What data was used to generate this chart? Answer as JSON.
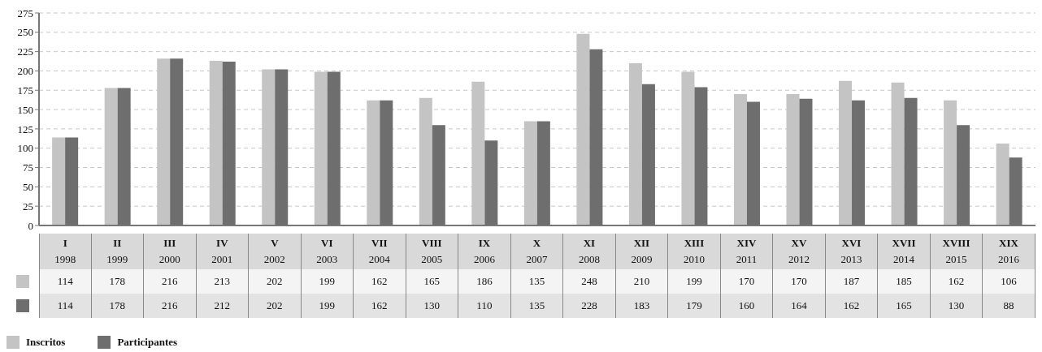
{
  "chart_data": {
    "type": "bar",
    "categories": [
      "I 1998",
      "II 1999",
      "III 2000",
      "IV 2001",
      "V 2002",
      "VI 2003",
      "VII 2004",
      "VIII 2005",
      "IX 2006",
      "X 2007",
      "XI 2008",
      "XII 2009",
      "XIII 2010",
      "XIV 2011",
      "XV 2012",
      "XVI 2013",
      "XVII 2014",
      "XVIII 2015",
      "XIX 2016"
    ],
    "series": [
      {
        "name": "Inscritos",
        "color": "#c4c4c4",
        "values": [
          114,
          178,
          216,
          213,
          202,
          199,
          162,
          165,
          186,
          135,
          248,
          210,
          199,
          170,
          170,
          187,
          185,
          162,
          106
        ]
      },
      {
        "name": "Participantes",
        "color": "#6e6e6e",
        "values": [
          114,
          178,
          216,
          212,
          202,
          199,
          162,
          130,
          110,
          135,
          228,
          183,
          179,
          160,
          164,
          162,
          165,
          130,
          88
        ]
      }
    ],
    "ylim": [
      0,
      275
    ],
    "yticks": [
      0,
      25,
      50,
      75,
      100,
      125,
      150,
      175,
      200,
      225,
      250,
      275
    ],
    "grid": "y",
    "legend": "bottom left",
    "data_labels": true
  }
}
